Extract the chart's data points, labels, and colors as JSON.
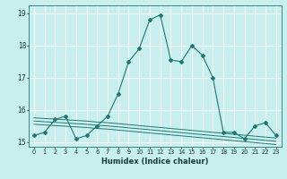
{
  "x": [
    0,
    1,
    2,
    3,
    4,
    5,
    6,
    7,
    8,
    9,
    10,
    11,
    12,
    13,
    14,
    15,
    16,
    17,
    18,
    19,
    20,
    21,
    22,
    23
  ],
  "y_main": [
    15.2,
    15.3,
    15.7,
    15.8,
    15.1,
    15.2,
    15.5,
    15.8,
    16.5,
    17.5,
    17.9,
    18.8,
    18.95,
    17.55,
    17.5,
    18.0,
    17.7,
    17.0,
    15.3,
    15.3,
    15.1,
    15.5,
    15.6,
    15.2
  ],
  "y_flat1": [
    15.75,
    15.73,
    15.71,
    15.69,
    15.67,
    15.65,
    15.62,
    15.6,
    15.57,
    15.54,
    15.51,
    15.48,
    15.45,
    15.42,
    15.39,
    15.36,
    15.33,
    15.3,
    15.27,
    15.24,
    15.21,
    15.18,
    15.15,
    15.12
  ],
  "y_flat2": [
    15.65,
    15.63,
    15.61,
    15.59,
    15.57,
    15.55,
    15.52,
    15.5,
    15.47,
    15.44,
    15.41,
    15.38,
    15.35,
    15.32,
    15.29,
    15.26,
    15.23,
    15.2,
    15.17,
    15.14,
    15.11,
    15.08,
    15.05,
    15.02
  ],
  "y_flat3": [
    15.55,
    15.53,
    15.51,
    15.49,
    15.47,
    15.45,
    15.42,
    15.4,
    15.37,
    15.34,
    15.31,
    15.28,
    15.25,
    15.22,
    15.19,
    15.16,
    15.13,
    15.1,
    15.07,
    15.04,
    15.01,
    14.98,
    14.95,
    14.92
  ],
  "xlabel": "Humidex (Indice chaleur)",
  "color": "#1a7a6e",
  "bg_color": "#c8eeee",
  "grid_color": "#ffffff",
  "ylim": [
    14.85,
    19.25
  ],
  "yticks": [
    15,
    16,
    17,
    18,
    19
  ],
  "xlim": [
    -0.5,
    23.5
  ]
}
